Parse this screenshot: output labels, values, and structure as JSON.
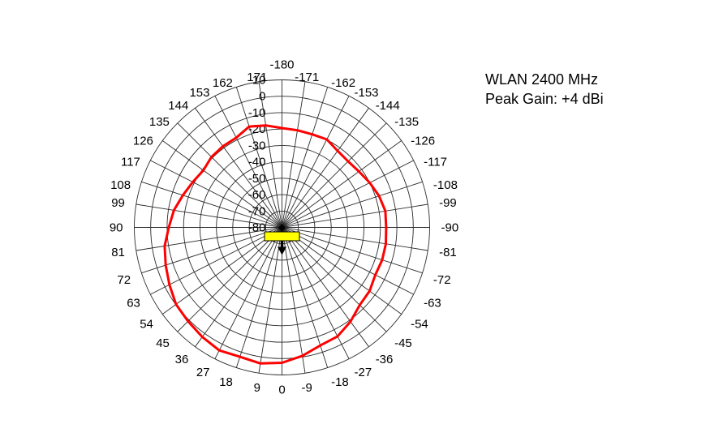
{
  "figure": {
    "title": "WLAN 2400 MHz",
    "subtitle": "Peak Gain: +4 dBi"
  },
  "colors": {
    "background": "#ffffff",
    "grid": "#2b2b2b",
    "text": "#000000",
    "curve": "#ff0000",
    "marker_fill": "#ffff00",
    "marker_stroke": "#000000"
  },
  "chart_data": {
    "type": "line",
    "subtype": "polar-radiation-pattern",
    "title": "WLAN 2400 MHz",
    "subtitle": "Peak Gain: +4 dBi",
    "peak_gain_dbi": 4,
    "angle_unit": "degrees",
    "radial_unit": "dB",
    "radial_axis": {
      "min": -80,
      "max": 10,
      "tick_step": 10,
      "tick_labels": [
        10,
        0,
        -10,
        -20,
        -30,
        -40,
        -50,
        -60,
        -70,
        -80
      ]
    },
    "grid": {
      "rings": 9,
      "spokes": 40,
      "angle_step_deg": 9,
      "orientation": "0-at-bottom, negative angles on right, -180/180 at top"
    },
    "angles_deg": [
      -180,
      -171,
      -162,
      -153,
      -144,
      -135,
      -126,
      -117,
      -108,
      -99,
      -90,
      -81,
      -72,
      -63,
      -54,
      -45,
      -36,
      -27,
      -18,
      -9,
      0,
      9,
      18,
      27,
      36,
      45,
      54,
      63,
      72,
      81,
      90,
      99,
      108,
      117,
      126,
      135,
      144,
      153,
      162,
      171
    ],
    "series": [
      {
        "name": "gain-pattern",
        "color": "#ff0000",
        "gain_dbi": [
          -19.4,
          -20.0,
          -20.3,
          -19.8,
          -22.3,
          -23.0,
          -22.0,
          -20.0,
          -17.8,
          -16.2,
          -16.5,
          -15.9,
          -15.8,
          -16.2,
          -14.0,
          -13.0,
          -9.0,
          -5.4,
          -4.3,
          -0.7,
          2.6,
          4.0,
          3.0,
          4.2,
          2.6,
          1.0,
          -0.2,
          -3.0,
          -5.5,
          -7.6,
          -11.0,
          -13.3,
          -16.5,
          -19.0,
          -20.8,
          -19.2,
          -18.8,
          -18.6,
          -15.3,
          -17.0
        ]
      }
    ],
    "legend": "none",
    "center_marker": {
      "shape": "rectangle-with-down-arrow",
      "fill": "#ffff00",
      "stroke": "#000000"
    }
  }
}
